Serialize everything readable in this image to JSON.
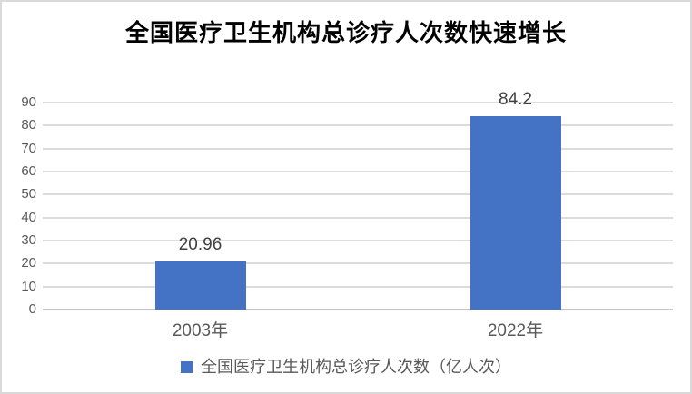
{
  "chart_data": {
    "type": "bar",
    "title": "全国医疗卫生机构总诊疗人次数快速增长",
    "categories": [
      "2003年",
      "2022年"
    ],
    "values": [
      20.96,
      84.2
    ],
    "data_labels": [
      "20.96",
      "84.2"
    ],
    "legend": "全国医疗卫生机构总诊疗人次数（亿人次）",
    "legend_position": "bottom",
    "xlabel": "",
    "ylabel": "",
    "ylim": [
      0,
      90
    ],
    "yticks": [
      0,
      10,
      20,
      30,
      40,
      50,
      60,
      70,
      80,
      90
    ],
    "grid": true,
    "bar_color": "#4472C4"
  },
  "colors": {
    "bar": "#4472C4",
    "gridline": "#DCDCDC",
    "axis_line": "#C6C6C6",
    "tick_label": "#595959",
    "data_label": "#404040",
    "title": "#000000",
    "border": "#D9D9D9",
    "background": "#FFFFFF"
  }
}
